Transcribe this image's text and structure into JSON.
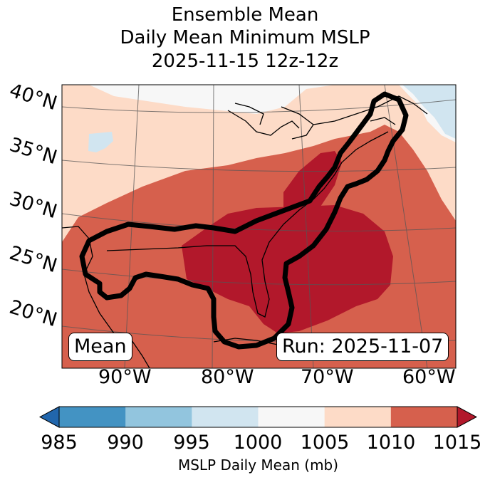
{
  "title": {
    "line1": "Ensemble Mean",
    "line2": "Daily Mean Minimum MSLP",
    "line3": "2025-11-15 12z-12z"
  },
  "map": {
    "lat_labels": [
      "40°N",
      "35°N",
      "30°N",
      "25°N",
      "20°N"
    ],
    "lon_labels": [
      "90°W",
      "80°W",
      "70°W",
      "60°W"
    ],
    "mean_box": "Mean",
    "run_box": "Run: 2025-11-07",
    "colors": {
      "c1010_1015": "#d6604d",
      "c1015_plus": "#b2182b",
      "c1005_1010": "#fddbc7",
      "c1000_1005": "#f7f7f7",
      "c995_1000": "#d1e5f0",
      "outline": "#000000"
    }
  },
  "colorbar": {
    "ticks": [
      "985",
      "990",
      "995",
      "1000",
      "1005",
      "1010",
      "1015"
    ],
    "label": "MSLP Daily Mean (mb)",
    "colors": [
      "#2166ac",
      "#4393c3",
      "#92c5de",
      "#d1e5f0",
      "#f7f7f7",
      "#fddbc7",
      "#d6604d",
      "#b2182b"
    ]
  }
}
